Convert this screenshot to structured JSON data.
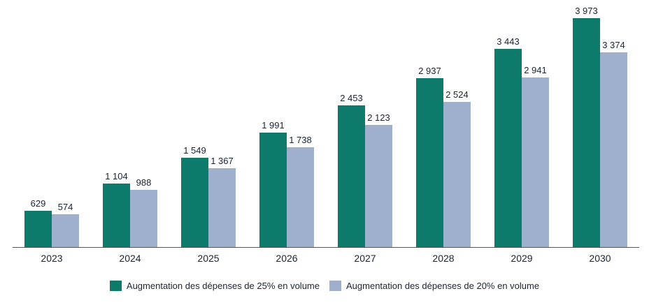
{
  "chart_data": {
    "type": "bar",
    "categories": [
      "2023",
      "2024",
      "2025",
      "2026",
      "2027",
      "2028",
      "2029",
      "2030"
    ],
    "series": [
      {
        "name": "Augmentation  des dépenses de 25% en volume",
        "color": "#0d7a6c",
        "values": [
          629,
          1104,
          1549,
          1991,
          2453,
          2937,
          3443,
          3973
        ]
      },
      {
        "name": "Augmentation  des dépenses de 20% en volume",
        "color": "#9fb0ce",
        "values": [
          574,
          988,
          1367,
          1738,
          2123,
          2524,
          2941,
          3374
        ]
      }
    ],
    "title": "",
    "xlabel": "",
    "ylabel": "",
    "ylim": [
      0,
      4100
    ],
    "grid": false,
    "y_axis_visible": false,
    "legend_position": "bottom",
    "data_labels": "above-bars",
    "number_format": "space-thousands"
  }
}
